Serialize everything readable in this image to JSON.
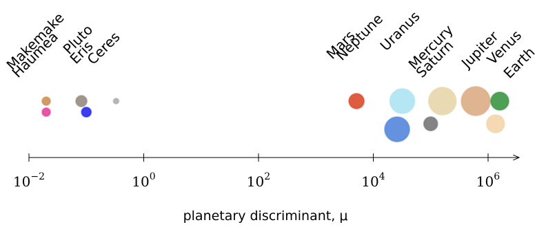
{
  "chart_data": {
    "type": "scatter",
    "xlabel": "planetary discriminant, μ",
    "xscale": "log",
    "xlim": [
      0.01,
      3000000
    ],
    "xticks": [
      {
        "value": 0.01,
        "base": "10",
        "exponent": "−2"
      },
      {
        "value": 1,
        "base": "10",
        "exponent": "0"
      },
      {
        "value": 100,
        "base": "10",
        "exponent": "2"
      },
      {
        "value": 10000,
        "base": "10",
        "exponent": "4"
      },
      {
        "value": 1000000,
        "base": "10",
        "exponent": "6"
      }
    ],
    "labels": [
      "Makemake",
      "Haumea",
      "Pluto",
      "Eris",
      "Ceres",
      "Mars",
      "Neptune",
      "Uranus",
      "Mercury",
      "Saturn",
      "Jupiter",
      "Venus",
      "Earth"
    ],
    "x": [
      0.02,
      0.02,
      0.082,
      0.1,
      0.33,
      5100,
      26000,
      32000,
      100000,
      160000,
      610000,
      1350000,
      1600000
    ],
    "colors": [
      "#c98a4b",
      "#e0389a",
      "#8f8478",
      "#1a1aee",
      "#a9a9a9",
      "#d8401f",
      "#4a7fd8",
      "#a8e2f2",
      "#6f6f6f",
      "#e6d3a6",
      "#d9a77c",
      "#f2d2a4",
      "#2f8f3a"
    ]
  }
}
